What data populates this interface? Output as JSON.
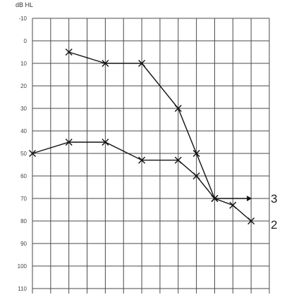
{
  "chart_data": {
    "type": "line",
    "title": "",
    "ylabel": "dB HL",
    "xlabel": "",
    "ylim": [
      -10,
      110
    ],
    "y_ticks": [
      -10,
      0,
      10,
      20,
      30,
      40,
      50,
      60,
      70,
      80,
      90,
      100,
      110
    ],
    "y_tick_labels": [
      "-10",
      "0",
      "10",
      "20",
      "30",
      "40",
      "50",
      "60",
      "70",
      "80",
      "90",
      "100",
      "110"
    ],
    "x_ticks": [
      0,
      1,
      2,
      3,
      4,
      5,
      6,
      7,
      8,
      9,
      10,
      11,
      12,
      13
    ],
    "xlim": [
      0,
      13
    ],
    "grid": true,
    "series": [
      {
        "marker": "x",
        "end_label": "3",
        "x": [
          2,
          4,
          6,
          8,
          9,
          10
        ],
        "y": [
          5,
          10,
          10,
          30,
          50,
          70
        ]
      },
      {
        "marker": "x",
        "end_label": "2",
        "x": [
          0,
          2,
          4,
          6,
          8,
          9,
          10,
          11,
          12
        ],
        "y": [
          50,
          45,
          45,
          53,
          53,
          60,
          70,
          73,
          80
        ]
      }
    ],
    "extension": {
      "series": 0,
      "x": [
        10,
        12
      ],
      "y": [
        70,
        70
      ],
      "arrow": true
    }
  }
}
